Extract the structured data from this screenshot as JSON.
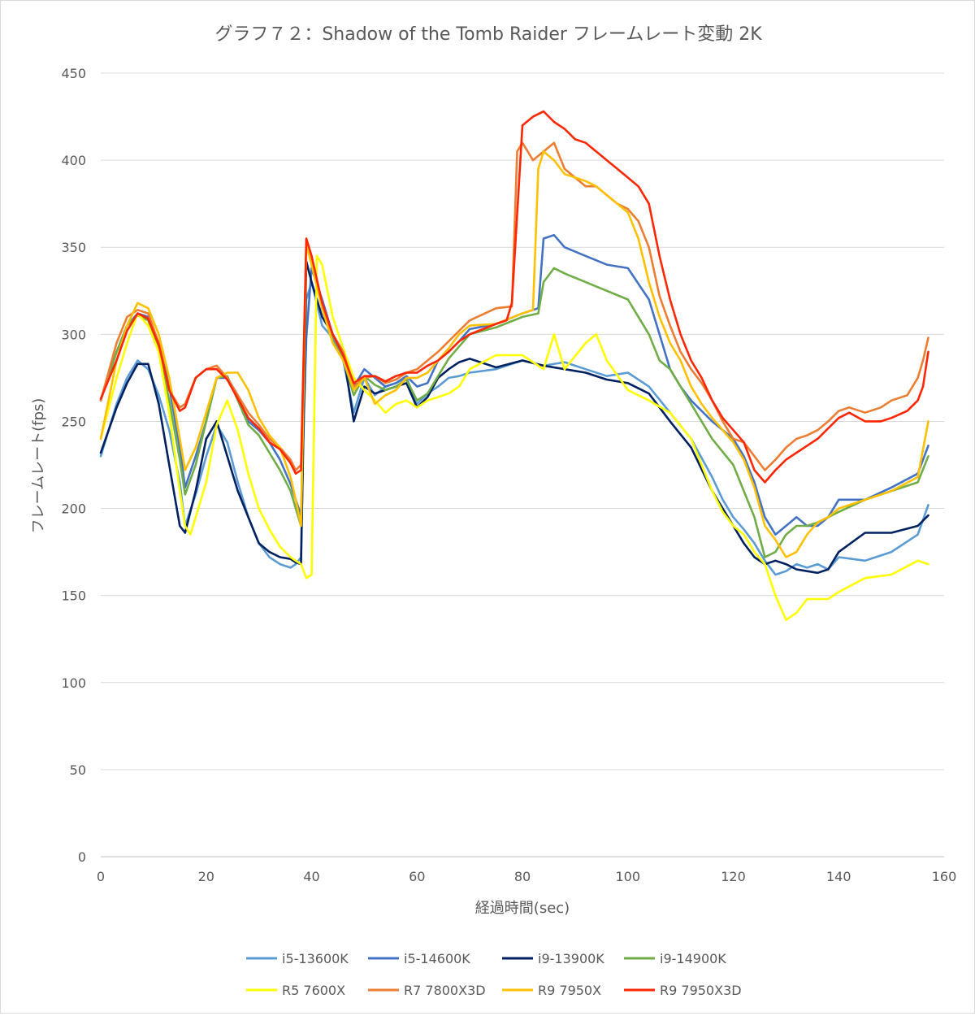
{
  "chart_data": {
    "type": "line",
    "title": "グラフ７２：Shadow of the Tomb Raider フレームレート変動 2K",
    "xlabel": "経過時間(sec)",
    "ylabel": "フレームレート(fps)",
    "xlim": [
      0,
      160
    ],
    "ylim": [
      0,
      450
    ],
    "xticks": [
      0,
      20,
      40,
      60,
      80,
      100,
      120,
      140,
      160
    ],
    "yticks": [
      0,
      50,
      100,
      150,
      200,
      250,
      300,
      350,
      400,
      450
    ],
    "xtick_labels": [
      "0",
      "20",
      "40",
      "60",
      "80",
      "100",
      "120",
      "140",
      "160"
    ],
    "ytick_labels": [
      "0",
      "50",
      "100",
      "150",
      "200",
      "250",
      "300",
      "350",
      "400",
      "450"
    ],
    "grid": "horizontal",
    "legend_position": "bottom",
    "series": [
      {
        "name": "i5-13600K",
        "color": "#5b9bd5",
        "x": [
          0,
          3,
          5,
          7,
          9,
          11,
          13,
          15,
          16,
          18,
          20,
          22,
          24,
          26,
          28,
          30,
          32,
          34,
          36,
          37,
          38,
          39,
          40,
          42,
          44,
          46,
          48,
          50,
          52,
          54,
          56,
          58,
          60,
          62,
          64,
          66,
          68,
          70,
          75,
          80,
          84,
          88,
          92,
          96,
          100,
          104,
          108,
          112,
          116,
          118,
          120,
          122,
          124,
          126,
          128,
          130,
          132,
          134,
          136,
          138,
          140,
          145,
          150,
          155,
          157
        ],
        "y": [
          230,
          260,
          275,
          285,
          280,
          265,
          245,
          215,
          190,
          208,
          230,
          248,
          238,
          215,
          195,
          180,
          172,
          168,
          166,
          168,
          172,
          320,
          330,
          305,
          298,
          285,
          255,
          275,
          265,
          270,
          272,
          275,
          260,
          266,
          270,
          275,
          276,
          278,
          280,
          285,
          282,
          284,
          280,
          276,
          278,
          270,
          255,
          240,
          218,
          205,
          195,
          188,
          180,
          170,
          162,
          164,
          168,
          166,
          168,
          165,
          172,
          170,
          175,
          185,
          202
        ]
      },
      {
        "name": "i5-14600K",
        "color": "#4472c4",
        "x": [
          0,
          3,
          5,
          7,
          9,
          11,
          13,
          15,
          16,
          18,
          20,
          22,
          24,
          26,
          28,
          30,
          32,
          34,
          36,
          37,
          38,
          39,
          40,
          42,
          44,
          46,
          48,
          50,
          52,
          54,
          56,
          58,
          60,
          62,
          64,
          66,
          68,
          70,
          75,
          80,
          83,
          84,
          86,
          88,
          92,
          96,
          100,
          104,
          106,
          108,
          110,
          112,
          116,
          120,
          122,
          124,
          126,
          128,
          130,
          132,
          134,
          136,
          138,
          140,
          145,
          150,
          155,
          157
        ],
        "y": [
          262,
          290,
          305,
          312,
          310,
          295,
          270,
          235,
          212,
          230,
          250,
          275,
          275,
          265,
          250,
          245,
          238,
          228,
          214,
          205,
          196,
          298,
          338,
          320,
          300,
          290,
          270,
          280,
          275,
          270,
          272,
          276,
          270,
          272,
          285,
          290,
          296,
          303,
          306,
          312,
          315,
          355,
          357,
          350,
          345,
          340,
          338,
          320,
          300,
          280,
          270,
          262,
          250,
          240,
          230,
          215,
          195,
          185,
          190,
          195,
          190,
          190,
          195,
          205,
          205,
          212,
          220,
          236
        ]
      },
      {
        "name": "i9-13900K",
        "color": "#002060",
        "x": [
          0,
          3,
          5,
          7,
          9,
          11,
          13,
          15,
          16,
          18,
          20,
          22,
          24,
          26,
          28,
          30,
          32,
          34,
          36,
          37,
          38,
          39,
          40,
          42,
          44,
          46,
          48,
          50,
          52,
          54,
          56,
          58,
          60,
          62,
          64,
          66,
          68,
          70,
          75,
          80,
          84,
          88,
          92,
          96,
          100,
          104,
          108,
          112,
          116,
          118,
          120,
          122,
          124,
          126,
          128,
          130,
          132,
          134,
          136,
          138,
          140,
          145,
          150,
          155,
          157
        ],
        "y": [
          232,
          258,
          272,
          283,
          283,
          260,
          225,
          190,
          186,
          210,
          240,
          250,
          230,
          210,
          195,
          180,
          175,
          172,
          171,
          169,
          168,
          342,
          330,
          310,
          300,
          290,
          250,
          270,
          266,
          268,
          270,
          272,
          258,
          264,
          275,
          280,
          284,
          286,
          281,
          285,
          282,
          280,
          278,
          274,
          272,
          266,
          250,
          235,
          210,
          200,
          190,
          180,
          172,
          168,
          170,
          168,
          165,
          164,
          163,
          165,
          175,
          186,
          186,
          190,
          196
        ]
      },
      {
        "name": "i9-14900K",
        "color": "#70ad47",
        "x": [
          0,
          3,
          5,
          7,
          9,
          11,
          13,
          15,
          16,
          18,
          20,
          22,
          24,
          26,
          28,
          30,
          32,
          34,
          36,
          37,
          38,
          39,
          40,
          42,
          44,
          46,
          48,
          50,
          52,
          54,
          56,
          58,
          60,
          62,
          64,
          66,
          68,
          70,
          75,
          80,
          83,
          84,
          86,
          88,
          92,
          96,
          100,
          104,
          106,
          108,
          110,
          112,
          116,
          120,
          122,
          124,
          126,
          128,
          130,
          132,
          134,
          136,
          138,
          140,
          145,
          150,
          155,
          157
        ],
        "y": [
          262,
          290,
          305,
          311,
          308,
          292,
          262,
          228,
          208,
          225,
          250,
          275,
          276,
          262,
          248,
          242,
          232,
          222,
          210,
          200,
          190,
          355,
          340,
          315,
          296,
          286,
          265,
          276,
          271,
          268,
          270,
          274,
          262,
          266,
          276,
          286,
          293,
          300,
          304,
          310,
          312,
          330,
          338,
          335,
          330,
          325,
          320,
          300,
          285,
          280,
          270,
          260,
          240,
          225,
          210,
          195,
          172,
          175,
          185,
          190,
          190,
          192,
          195,
          198,
          205,
          210,
          215,
          230
        ]
      },
      {
        "name": "R5 7600X",
        "color": "#ffff00",
        "x": [
          0,
          3,
          5,
          7,
          9,
          11,
          13,
          15,
          16,
          17,
          18,
          20,
          22,
          24,
          26,
          28,
          30,
          32,
          34,
          36,
          37,
          38,
          39,
          40,
          41,
          42,
          44,
          46,
          48,
          50,
          52,
          54,
          56,
          58,
          60,
          62,
          64,
          66,
          68,
          70,
          75,
          80,
          84,
          86,
          88,
          92,
          94,
          96,
          100,
          104,
          108,
          112,
          116,
          118,
          120,
          122,
          124,
          126,
          128,
          130,
          132,
          134,
          136,
          138,
          140,
          145,
          150,
          155,
          157
        ],
        "y": [
          240,
          275,
          295,
          312,
          305,
          290,
          255,
          210,
          190,
          185,
          195,
          215,
          248,
          262,
          245,
          220,
          200,
          188,
          178,
          172,
          170,
          168,
          160,
          162,
          345,
          340,
          310,
          292,
          275,
          268,
          262,
          255,
          260,
          262,
          258,
          262,
          264,
          266,
          270,
          280,
          288,
          288,
          280,
          300,
          280,
          295,
          300,
          285,
          268,
          262,
          255,
          240,
          210,
          198,
          190,
          185,
          175,
          168,
          150,
          136,
          140,
          148,
          148,
          148,
          152,
          160,
          162,
          170,
          168
        ]
      },
      {
        "name": "R7 7800X3D",
        "color": "#ed7d31",
        "x": [
          0,
          3,
          5,
          7,
          9,
          11,
          13,
          15,
          16,
          18,
          20,
          22,
          24,
          26,
          28,
          30,
          32,
          34,
          36,
          37,
          38,
          39,
          40,
          42,
          44,
          46,
          48,
          50,
          52,
          54,
          56,
          58,
          60,
          62,
          64,
          66,
          68,
          70,
          75,
          78,
          79,
          80,
          82,
          84,
          86,
          88,
          90,
          92,
          94,
          96,
          98,
          100,
          102,
          104,
          106,
          108,
          110,
          112,
          114,
          116,
          118,
          120,
          122,
          124,
          126,
          128,
          130,
          132,
          134,
          136,
          138,
          140,
          142,
          145,
          148,
          150,
          153,
          155,
          156,
          157
        ],
        "y": [
          262,
          295,
          310,
          314,
          312,
          295,
          268,
          258,
          260,
          275,
          280,
          282,
          275,
          265,
          255,
          248,
          240,
          235,
          228,
          222,
          225,
          350,
          345,
          315,
          300,
          290,
          270,
          275,
          276,
          272,
          274,
          278,
          280,
          285,
          290,
          296,
          302,
          308,
          315,
          316,
          405,
          410,
          400,
          405,
          410,
          395,
          390,
          385,
          385,
          380,
          375,
          372,
          365,
          350,
          322,
          305,
          290,
          280,
          272,
          262,
          250,
          240,
          238,
          230,
          222,
          228,
          235,
          240,
          242,
          245,
          250,
          256,
          258,
          255,
          258,
          262,
          265,
          275,
          285,
          298
        ]
      },
      {
        "name": "R9 7950X",
        "color": "#ffc000",
        "x": [
          0,
          3,
          5,
          7,
          9,
          11,
          13,
          15,
          16,
          18,
          20,
          22,
          24,
          26,
          28,
          30,
          32,
          34,
          36,
          37,
          38,
          39,
          40,
          42,
          44,
          46,
          48,
          50,
          52,
          54,
          56,
          58,
          60,
          62,
          64,
          66,
          68,
          70,
          75,
          80,
          82,
          83,
          84,
          86,
          88,
          90,
          92,
          94,
          96,
          98,
          100,
          102,
          104,
          106,
          108,
          110,
          112,
          114,
          116,
          118,
          120,
          122,
          124,
          126,
          128,
          130,
          132,
          134,
          136,
          138,
          140,
          145,
          150,
          155,
          157
        ],
        "y": [
          240,
          285,
          305,
          318,
          315,
          300,
          275,
          240,
          222,
          235,
          255,
          275,
          278,
          278,
          268,
          252,
          242,
          235,
          218,
          205,
          190,
          352,
          340,
          315,
          295,
          285,
          268,
          275,
          260,
          265,
          268,
          275,
          275,
          278,
          285,
          292,
          300,
          305,
          306,
          312,
          314,
          395,
          405,
          400,
          392,
          390,
          388,
          385,
          380,
          375,
          370,
          355,
          330,
          310,
          295,
          285,
          270,
          260,
          252,
          245,
          238,
          228,
          212,
          190,
          182,
          172,
          175,
          185,
          192,
          195,
          200,
          205,
          210,
          218,
          250
        ]
      },
      {
        "name": "R9 7950X3D",
        "color": "#ff2600",
        "x": [
          0,
          3,
          5,
          7,
          9,
          11,
          13,
          15,
          16,
          18,
          20,
          22,
          24,
          26,
          28,
          30,
          32,
          34,
          36,
          37,
          38,
          39,
          40,
          42,
          44,
          46,
          48,
          50,
          52,
          54,
          56,
          58,
          60,
          62,
          64,
          66,
          68,
          70,
          75,
          77,
          78,
          80,
          82,
          84,
          86,
          88,
          90,
          92,
          94,
          96,
          98,
          100,
          102,
          104,
          106,
          108,
          110,
          112,
          114,
          116,
          118,
          120,
          122,
          124,
          126,
          128,
          130,
          132,
          134,
          136,
          138,
          140,
          142,
          145,
          148,
          150,
          153,
          155,
          156,
          157
        ],
        "y": [
          263,
          285,
          302,
          312,
          309,
          294,
          268,
          256,
          258,
          275,
          280,
          280,
          274,
          263,
          252,
          246,
          238,
          234,
          226,
          220,
          222,
          355,
          345,
          318,
          300,
          288,
          272,
          276,
          276,
          273,
          276,
          278,
          278,
          282,
          285,
          290,
          296,
          300,
          306,
          308,
          318,
          420,
          425,
          428,
          422,
          418,
          412,
          410,
          405,
          400,
          395,
          390,
          385,
          375,
          345,
          320,
          300,
          285,
          275,
          262,
          252,
          245,
          238,
          222,
          215,
          222,
          228,
          232,
          236,
          240,
          246,
          252,
          255,
          250,
          250,
          252,
          256,
          262,
          270,
          290
        ]
      }
    ]
  }
}
